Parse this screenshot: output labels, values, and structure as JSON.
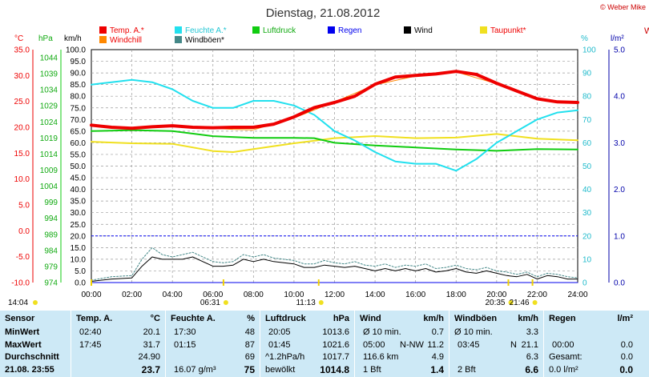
{
  "header": {
    "title": "Dienstag, 21.08.2012",
    "copyright": "© Weber Mike",
    "right_edge_label": "W"
  },
  "colors": {
    "temp": "#ee0000",
    "windchill": "#ff8800",
    "humidity": "#22e0ee",
    "pressure": "#11cc11",
    "rain": "#0000ee",
    "wind": "#000000",
    "dewpoint": "#f0e020",
    "gusts": "#448888",
    "grid": "#888888",
    "table_bg": "#cde9f6",
    "temp_axis": "#ee0000",
    "pressure_axis": "#11aa11",
    "rain_axis": "#0000aa",
    "humidity_axis": "#22bbcc"
  },
  "legend": [
    {
      "label": "Temp. A.*",
      "color": "#ee0000"
    },
    {
      "label": "Feuchte A.*",
      "color": "#22e0ee"
    },
    {
      "label": "Luftdruck",
      "color": "#11cc11"
    },
    {
      "label": "Regen",
      "color": "#0000ee"
    },
    {
      "label": "Wind",
      "color": "#000000"
    },
    {
      "label": "Taupunkt*",
      "color": "#f0e020"
    },
    {
      "label": "Windchill",
      "color": "#ff8800"
    },
    {
      "label": "Windböen*",
      "color": "#448888"
    }
  ],
  "axis_units": {
    "temp": "°C",
    "pressure": "hPa",
    "wind": "km/h",
    "humidity": "%",
    "rain": "l/m²"
  },
  "chart_data": {
    "type": "line",
    "xlim": [
      0,
      24
    ],
    "x_ticks": [
      "00:00",
      "02:00",
      "04:00",
      "06:00",
      "08:00",
      "10:00",
      "12:00",
      "14:00",
      "16:00",
      "18:00",
      "20:00",
      "22:00",
      "24:00"
    ],
    "temp_ticks": [
      "35.0",
      "30.0",
      "25.0",
      "20.0",
      "15.0",
      "10.0",
      "5.0",
      "0.0",
      "-5.0",
      "-10.0"
    ],
    "pressure_ticks": [
      "1044",
      "1039",
      "1034",
      "1029",
      "1024",
      "1019",
      "1014",
      "1009",
      "1004",
      "999",
      "994",
      "989",
      "984",
      "979",
      "974"
    ],
    "wind_ticks": [
      "100.0",
      "95.0",
      "90.0",
      "85.0",
      "80.0",
      "75.0",
      "70.0",
      "65.0",
      "60.0",
      "55.0",
      "50.0",
      "45.0",
      "40.0",
      "35.0",
      "30.0",
      "25.0",
      "20.0",
      "15.0",
      "10.0",
      "5.0",
      "0.0"
    ],
    "humidity_ticks": [
      "100",
      "90",
      "80",
      "70",
      "60",
      "50",
      "40",
      "30",
      "20",
      "10",
      "0"
    ],
    "rain_ticks": [
      "5.0",
      "4.0",
      "3.0",
      "2.0",
      "1.0",
      "0.0"
    ],
    "ylim_temp": [
      -10,
      35
    ],
    "ylim_pressure": [
      974,
      1044
    ],
    "ylim_wind": [
      0,
      100
    ],
    "ylim_humidity": [
      0,
      100
    ],
    "ylim_rain": [
      0,
      5
    ],
    "series": [
      {
        "name": "Temp. A.*",
        "key": "temp",
        "scale": "temp",
        "color": "#ee0000",
        "width": 4,
        "x": [
          0,
          1,
          2,
          3,
          4,
          5,
          6,
          7,
          8,
          9,
          10,
          11,
          12,
          13,
          14,
          15,
          16,
          17,
          18,
          19,
          20,
          21,
          22,
          23,
          24
        ],
        "y": [
          20.4,
          20.0,
          19.8,
          20.1,
          20.3,
          20.0,
          19.9,
          20.0,
          20.0,
          20.6,
          22.0,
          23.8,
          24.8,
          26.0,
          28.3,
          29.7,
          30.0,
          30.3,
          30.8,
          30.2,
          28.5,
          27.0,
          25.5,
          24.9,
          24.8
        ]
      },
      {
        "name": "Windchill",
        "key": "windchill",
        "scale": "temp",
        "color": "#ff8800",
        "width": 1,
        "x": [
          0,
          2,
          4,
          6,
          7,
          8,
          10,
          12,
          14,
          16,
          18,
          20,
          22,
          24
        ],
        "y": [
          20.4,
          19.9,
          20.1,
          19.8,
          19.6,
          19.5,
          21.8,
          24.9,
          28.2,
          29.9,
          30.7,
          28.4,
          25.4,
          24.8
        ]
      },
      {
        "name": "Feuchte A.*",
        "key": "humidity",
        "scale": "humidity",
        "color": "#22e0ee",
        "width": 2,
        "x": [
          0,
          1,
          2,
          3,
          4,
          5,
          6,
          7,
          8,
          9,
          10,
          11,
          12,
          13,
          14,
          15,
          16,
          17,
          18,
          19,
          20,
          21,
          22,
          23,
          24
        ],
        "y": [
          85,
          86,
          87,
          86,
          83,
          78,
          75,
          75,
          78,
          78,
          76,
          72,
          65,
          61,
          56,
          52,
          51,
          51,
          48,
          53,
          60,
          65,
          70,
          73,
          74
        ]
      },
      {
        "name": "Luftdruck",
        "key": "pressure",
        "scale": "pressure",
        "color": "#11cc11",
        "width": 2,
        "x": [
          0,
          2,
          4,
          6,
          8,
          10,
          11,
          12,
          14,
          16,
          18,
          20,
          22,
          24
        ],
        "y": [
          1019.5,
          1019.8,
          1019.5,
          1018.0,
          1017.5,
          1017.5,
          1017.4,
          1016.0,
          1015.2,
          1014.6,
          1014.0,
          1013.6,
          1014.1,
          1014.0
        ]
      },
      {
        "name": "Taupunkt*",
        "key": "dewpoint",
        "scale": "temp",
        "color": "#f0e020",
        "width": 2,
        "x": [
          0,
          2,
          4,
          6,
          7,
          8,
          10,
          12,
          14,
          16,
          18,
          20,
          22,
          24
        ],
        "y": [
          17.2,
          16.9,
          16.8,
          15.4,
          15.2,
          15.8,
          16.9,
          17.9,
          18.3,
          17.9,
          18.0,
          18.7,
          17.8,
          17.5
        ]
      },
      {
        "name": "Wind",
        "key": "wind",
        "scale": "wind",
        "color": "#000000",
        "width": 1,
        "x": [
          0,
          1,
          2,
          2.5,
          3,
          3.5,
          4,
          4.5,
          5,
          5.5,
          6,
          6.5,
          7,
          7.5,
          8,
          8.5,
          9,
          9.5,
          10,
          10.5,
          11,
          11.5,
          12,
          12.5,
          13,
          13.5,
          14,
          14.5,
          15,
          15.5,
          16,
          16.5,
          17,
          17.5,
          18,
          18.5,
          19,
          19.5,
          20,
          20.5,
          21,
          21.5,
          22,
          22.5,
          23,
          23.5,
          24
        ],
        "y": [
          0.5,
          1.5,
          2,
          7,
          11,
          10,
          10,
          10,
          11,
          9,
          7,
          7,
          7.5,
          10,
          9,
          10,
          9,
          8.5,
          8,
          6.5,
          6.5,
          7.5,
          7,
          6.5,
          7,
          6,
          5,
          6,
          5,
          6,
          5,
          6,
          4.5,
          5,
          6,
          4.5,
          4,
          5,
          4,
          3,
          2.5,
          3.5,
          1.5,
          3,
          2.5,
          1.5,
          1.5
        ]
      },
      {
        "name": "Windböen*",
        "key": "gusts",
        "scale": "wind",
        "color": "#448888",
        "width": 1,
        "dash": true,
        "x": [
          0,
          1,
          2,
          2.5,
          3,
          3.5,
          4,
          4.5,
          5,
          5.5,
          6,
          6.5,
          7,
          7.5,
          8,
          8.5,
          9,
          9.5,
          10,
          10.5,
          11,
          11.5,
          12,
          12.5,
          13,
          13.5,
          14,
          14.5,
          15,
          15.5,
          16,
          16.5,
          17,
          17.5,
          18,
          18.5,
          19,
          19.5,
          20,
          20.5,
          21,
          21.5,
          22,
          22.5,
          23,
          23.5,
          24
        ],
        "y": [
          1,
          2.5,
          3,
          10,
          15,
          12,
          11,
          12,
          13,
          11,
          9,
          8.5,
          9,
          12,
          11,
          12,
          10.5,
          10,
          9.5,
          8,
          8,
          9.5,
          8.5,
          8,
          9,
          7.5,
          7,
          8,
          6.5,
          7.5,
          7,
          8,
          6,
          6.5,
          7.5,
          6,
          5.5,
          6.5,
          5,
          4.5,
          3.5,
          4.5,
          2.5,
          4,
          3.5,
          2.5,
          2
        ]
      },
      {
        "name": "Regen",
        "key": "rain",
        "scale": "rain",
        "color": "#0000ee",
        "width": 1,
        "x": [
          0,
          24
        ],
        "y": [
          0,
          0
        ]
      }
    ],
    "rain_reference_line": 1.0,
    "time_markers": [
      {
        "label": "14:04",
        "x": 0
      },
      {
        "label": "06:31",
        "x": 6.52
      },
      {
        "label": "11:13",
        "x": 11.22
      },
      {
        "label": "20:35",
        "x": 20.58
      },
      {
        "label": "21:46",
        "x": 21.77
      }
    ]
  },
  "table": {
    "sensor": {
      "header": "Sensor",
      "rows": [
        "MinWert",
        "MaxWert",
        "Durchschnitt"
      ],
      "footer": "21.08. 23:55"
    },
    "temp": {
      "header": "Temp. A.",
      "unit": "°C",
      "rows": [
        [
          "02:40",
          "20.1"
        ],
        [
          "17:45",
          "31.7"
        ],
        [
          "",
          "24.90"
        ]
      ],
      "footer_value": "23.7"
    },
    "humidity": {
      "header": "Feuchte A.",
      "unit": "%",
      "rows": [
        [
          "17:30",
          "48"
        ],
        [
          "01:15",
          "87"
        ],
        [
          "",
          "69"
        ]
      ],
      "footer_label": "16.07 g/m³",
      "footer_value": "75"
    },
    "pressure": {
      "header": "Luftdruck",
      "unit": "hPa",
      "rows": [
        [
          "20:05",
          "1013.6"
        ],
        [
          "01:45",
          "1021.6"
        ],
        [
          "^1.2hPa/h",
          "1017.7"
        ]
      ],
      "footer_label": "bewölkt",
      "footer_value": "1014.8"
    },
    "wind": {
      "header": "Wind",
      "unit": "km/h",
      "rows": [
        [
          "Ø 10 min.",
          "",
          "0.7"
        ],
        [
          "05:00",
          "N-NW",
          "11.2"
        ],
        [
          "116.6 km",
          "",
          "4.9"
        ]
      ],
      "footer_label": "1 Bft",
      "footer_value": "1.4"
    },
    "gusts": {
      "header": "Windböen",
      "unit": "km/h",
      "rows": [
        [
          "Ø 10 min.",
          "",
          "3.3"
        ],
        [
          "03:45",
          "N",
          "21.1"
        ],
        [
          "",
          "",
          "6.3"
        ]
      ],
      "footer_label": "2 Bft",
      "footer_value": "6.6"
    },
    "rain": {
      "header": "Regen",
      "unit": "l/m²",
      "rows": [
        [
          "",
          ""
        ],
        [
          "00:00",
          "0.0"
        ],
        [
          "Gesamt:",
          "0.0"
        ]
      ],
      "footer_label": "0.0 l/m²",
      "footer_value": "0.0"
    }
  }
}
